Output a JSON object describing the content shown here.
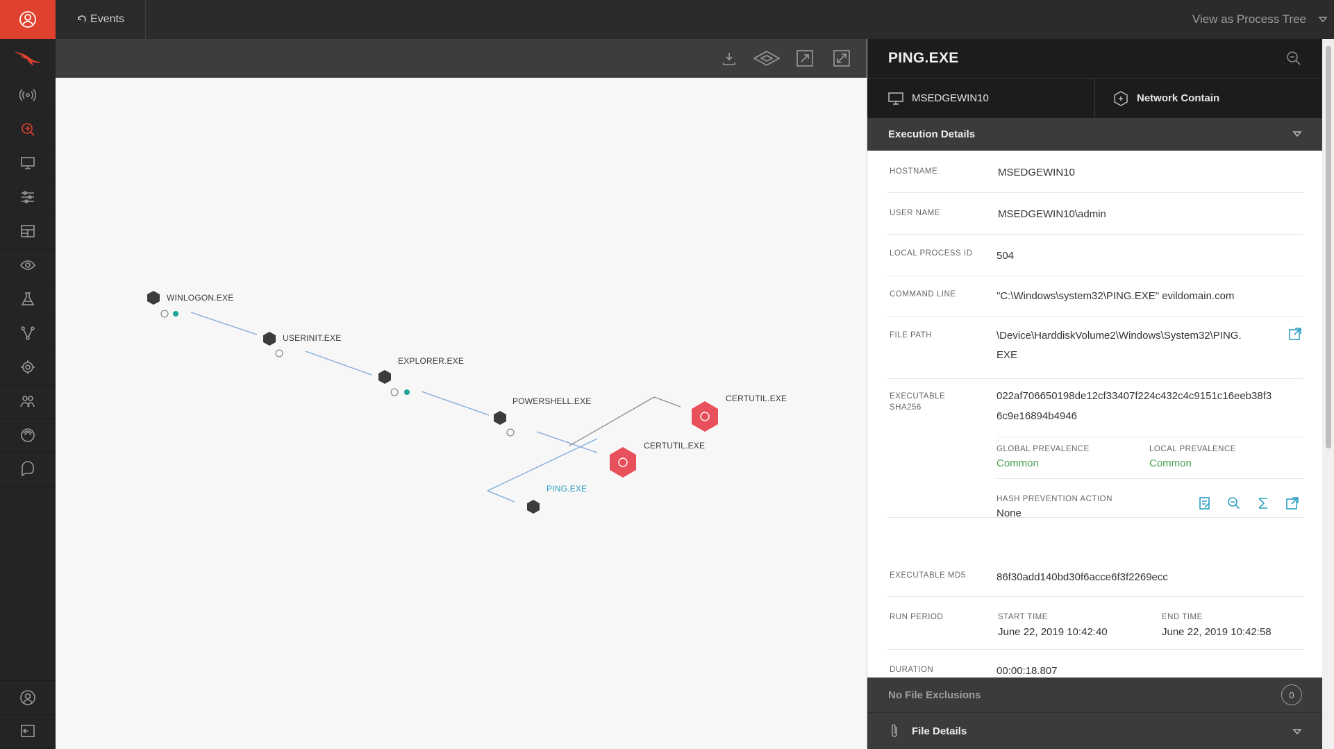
{
  "topbar": {
    "back_label": "Events",
    "view_as_label": "View as Process Tree"
  },
  "rail_icons": [
    "user-icon",
    "falcon-logo-icon",
    "activity-icon",
    "investigate-icon",
    "hosts-icon",
    "config-icon",
    "dashboards-icon",
    "discover-icon",
    "lab-icon",
    "graph-icon",
    "intelligence-icon",
    "users-icon",
    "spotlight-icon",
    "support-icon",
    "account-icon",
    "logout-icon"
  ],
  "graph_tools": [
    "download-icon",
    "cube-view-icon",
    "fit-icon",
    "expand-icon"
  ],
  "graph": {
    "nodes": [
      {
        "label": "WINLOGON.EXE"
      },
      {
        "label": "USERINIT.EXE"
      },
      {
        "label": "EXPLORER.EXE"
      },
      {
        "label": "POWERSHELL.EXE"
      },
      {
        "label": "CERTUTIL.EXE"
      },
      {
        "label": "CERTUTIL.EXE"
      },
      {
        "label": "PING.EXE"
      }
    ]
  },
  "panel": {
    "title": "PING.EXE",
    "tab_host": "MSEDGEWIN10",
    "tab_contain": "Network Contain",
    "execution_details_label": "Execution Details",
    "rows": {
      "hostname_k": "HOSTNAME",
      "hostname_v": "MSEDGEWIN10",
      "username_k": "USER NAME",
      "username_v": "MSEDGEWIN10\\admin",
      "pid_k": "LOCAL PROCESS ID",
      "pid_v": "504",
      "cmd_k": "COMMAND LINE",
      "cmd_v": "\"C:\\Windows\\system32\\PING.EXE\" evildomain.com",
      "path_k": "FILE PATH",
      "path_v1": "\\Device\\HarddiskVolume2\\Windows\\System32\\PING.",
      "path_v2": "EXE",
      "sha_k1": "EXECUTABLE",
      "sha_k2": "SHA256",
      "sha_v1": "022af706650198de12cf33407f224c432c4c9151c16eeb38f3",
      "sha_v2": "6c9e16894b4946",
      "global_prev_k": "GLOBAL PREVALENCE",
      "global_prev_v": "Common",
      "local_prev_k": "LOCAL PREVALENCE",
      "local_prev_v": "Common",
      "hash_action_k": "HASH PREVENTION ACTION",
      "hash_action_v": "None",
      "md5_k": "EXECUTABLE MD5",
      "md5_v": "86f30add140bd30f6acce6f3f2269ecc",
      "run_k": "RUN PERIOD",
      "start_k": "START TIME",
      "start_v": "June 22, 2019 10:42:40",
      "end_k": "END TIME",
      "end_v": "June 22, 2019 10:42:58",
      "duration_k": "DURATION",
      "duration_v": "00:00:18.807"
    },
    "no_file_exclusions_label": "No File Exclusions",
    "exclusions_count": "0",
    "file_details_label": "File Details"
  }
}
